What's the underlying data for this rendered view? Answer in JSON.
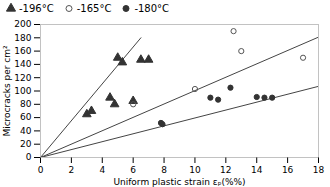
{
  "chart_data": {
    "type": "scatter",
    "xlabel": "Uniform plastic strain εₚ(%%)",
    "ylabel": "Microcracks per cm²",
    "xlim": [
      0,
      18
    ],
    "ylim": [
      0,
      200
    ],
    "xticks": [
      0,
      2,
      4,
      6,
      8,
      10,
      12,
      14,
      16,
      18
    ],
    "yticks": [
      0,
      20,
      40,
      60,
      80,
      100,
      120,
      140,
      160,
      180,
      200
    ],
    "legend": "upper left",
    "series": [
      {
        "name": "-196°C",
        "marker": "triangle-filled",
        "color": "#333333",
        "x": [
          3.0,
          3.3,
          4.5,
          4.8,
          5.0,
          5.3,
          6.0,
          6.5,
          7.0
        ],
        "values": [
          65,
          70,
          90,
          80,
          150,
          143,
          85,
          147,
          147
        ]
      },
      {
        "name": "-165°C",
        "marker": "circle-open",
        "color": "#555555",
        "x": [
          6.0,
          10.0,
          12.5,
          13.0,
          17.0
        ],
        "values": [
          80,
          103,
          190,
          160,
          150
        ]
      },
      {
        "name": "-180°C",
        "marker": "circle-filled",
        "color": "#333333",
        "x": [
          7.8,
          7.9,
          11.0,
          11.5,
          12.3,
          14.0,
          14.5,
          15.0
        ],
        "values": [
          52,
          50,
          90,
          87,
          105,
          91,
          90,
          90
        ]
      }
    ],
    "fit_lines": [
      {
        "type": "line",
        "color": "#444444",
        "x": [
          0,
          6.5
        ],
        "values": [
          0,
          180
        ]
      },
      {
        "type": "line",
        "color": "#444444",
        "x": [
          0,
          18
        ],
        "values": [
          0,
          181
        ]
      },
      {
        "type": "line",
        "color": "#444444",
        "x": [
          0,
          18
        ],
        "values": [
          0,
          107
        ]
      }
    ]
  }
}
